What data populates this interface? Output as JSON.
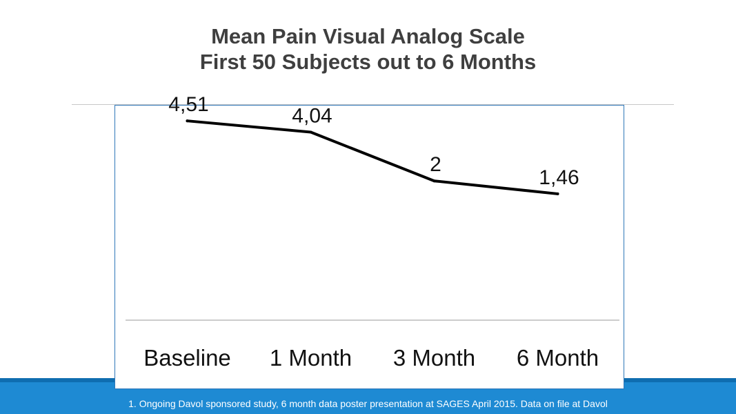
{
  "title": {
    "line1": "Mean Pain Visual Analog Scale",
    "line2": "First 50 Subjects out to 6 Months"
  },
  "footnote": "1. Ongoing Davol sponsored study, 6 month data poster presentation at SAGES April 2015.  Data on file at Davol",
  "colors": {
    "title": "#3f3f3f",
    "line": "#000000",
    "chart_border": "#2f77b8",
    "footer": "#1e8ad3"
  },
  "chart_data": {
    "type": "line",
    "title": "Mean Pain Visual Analog Scale First 50 Subjects out to 6 Months",
    "categories": [
      "Baseline",
      "1 Month",
      "3 Month",
      "6 Month"
    ],
    "series": [
      {
        "values": [
          4.51,
          4.04,
          2,
          1.46
        ],
        "labels": [
          "4,51",
          "4,04",
          "2",
          "1,46"
        ]
      }
    ],
    "xlabel": "",
    "ylabel": "",
    "ylim": [
      -3.82,
      5.15
    ],
    "grid": false,
    "legend": "none"
  }
}
